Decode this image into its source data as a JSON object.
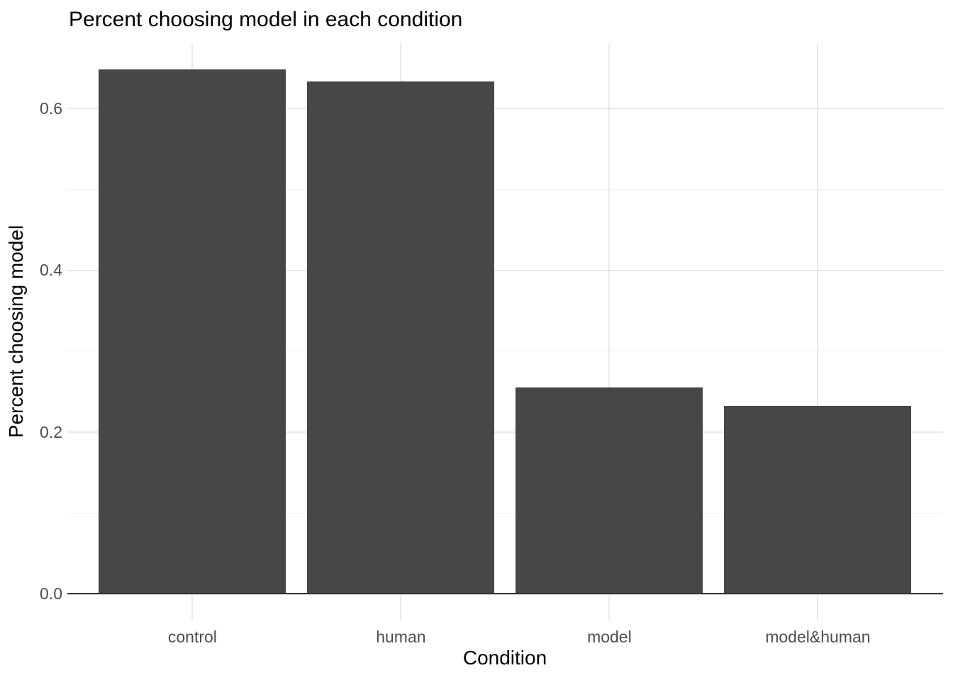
{
  "chart_data": {
    "type": "bar",
    "title": "Percent choosing model in each condition",
    "xlabel": "Condition",
    "ylabel": "Percent choosing model",
    "categories": [
      "control",
      "human",
      "model",
      "model&human"
    ],
    "values": [
      0.648,
      0.633,
      0.255,
      0.232
    ],
    "ylim": [
      0,
      0.68
    ],
    "y_major_ticks": [
      0,
      0.2,
      0.4,
      0.6
    ],
    "y_tick_labels": [
      "0.0",
      "0.2",
      "0.4",
      "0.6"
    ],
    "y_minor_ticks": [
      0.1,
      0.3,
      0.5
    ],
    "grid": "on",
    "legend": "none",
    "colors": {
      "bar_fill": "#474747",
      "grid_major": "#e9e9e9",
      "grid_minor": "#f0f0f0",
      "axis_line": "#333333",
      "tick_label": "#4d4d4d",
      "text": "#000000",
      "background": "#ffffff"
    }
  }
}
